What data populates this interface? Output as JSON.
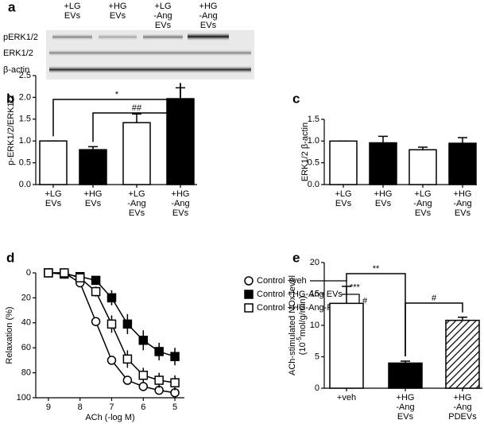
{
  "blot": {
    "label": "a",
    "lanes": [
      [
        "+LG",
        "EVs"
      ],
      [
        "+HG",
        "EVs"
      ],
      [
        "+LG",
        "-Ang",
        "EVs"
      ],
      [
        "+HG",
        "-Ang",
        "EVs"
      ]
    ],
    "rows": [
      "pERK1/2",
      "ERK1/2",
      "β-actin"
    ]
  },
  "chart_data": [
    {
      "type": "bar",
      "panel": "b",
      "ylabel": "p-ERK1/2/ERK1/2",
      "categories": [
        [
          "+LG",
          "EVs"
        ],
        [
          "+HG",
          "EVs"
        ],
        [
          "+LG",
          "-Ang",
          "EVs"
        ],
        [
          "+HG",
          "-Ang",
          "EVs"
        ]
      ],
      "values": [
        1.0,
        0.8,
        1.42,
        1.97
      ],
      "errors": [
        0,
        0.07,
        0.2,
        0.25
      ],
      "colors": [
        "#ffffff",
        "#000000",
        "#ffffff",
        "#000000"
      ],
      "ylim": [
        0,
        2.5
      ],
      "yticks": [
        {
          "value": 0,
          "label": "0.0"
        },
        0.5,
        {
          "value": 1,
          "label": "1.0"
        },
        1.5,
        {
          "value": 2,
          "label": "2.0"
        },
        2.5
      ],
      "annotations": [
        "*",
        "##"
      ]
    },
    {
      "type": "bar",
      "panel": "c",
      "ylabel": "ERK1/2 β-actin",
      "categories": [
        [
          "+LG",
          "EVs"
        ],
        [
          "+HG",
          "EVs"
        ],
        [
          "+LG",
          "-Ang",
          "EVs"
        ],
        [
          "+HG",
          "-Ang",
          "EVs"
        ]
      ],
      "values": [
        1.0,
        0.96,
        0.8,
        0.95
      ],
      "errors": [
        0,
        0.15,
        0.06,
        0.13
      ],
      "colors": [
        "#ffffff",
        "#000000",
        "#ffffff",
        "#000000"
      ],
      "ylim": [
        0,
        1.5
      ],
      "yticks": [
        {
          "value": 0,
          "label": "0.0"
        },
        0.5,
        {
          "value": 1,
          "label": "1.0"
        },
        1.5
      ]
    },
    {
      "type": "line",
      "panel": "d",
      "xlabel": "ACh (-log M)",
      "ylabel": "Relaxation (%)",
      "x": [
        9,
        8.5,
        8,
        7.5,
        7,
        6.5,
        6,
        5.5,
        5
      ],
      "xlim": [
        9.4,
        4.7
      ],
      "xticks": [
        9,
        8,
        7,
        6,
        5
      ],
      "ylim": [
        100,
        0
      ],
      "yticks": [
        0,
        20,
        40,
        60,
        80,
        100
      ],
      "series": [
        {
          "name": "Control +veh",
          "marker": "circle",
          "color": "#ffffff",
          "values": [
            0,
            0,
            8,
            39,
            70,
            86,
            91,
            94,
            96
          ],
          "errors": [
            0,
            0,
            2,
            3,
            3,
            2,
            2,
            2,
            2
          ]
        },
        {
          "name": "Control +HG-Ang EVs",
          "marker": "square",
          "color": "#000000",
          "values": [
            0,
            1,
            3,
            6,
            20,
            41,
            54,
            63,
            67
          ],
          "errors": [
            0,
            1,
            2,
            3,
            6,
            8,
            8,
            7,
            7
          ]
        },
        {
          "name": "Control +HG-Ang-PDEVs",
          "marker": "square",
          "color": "#ffffff",
          "values": [
            0,
            0,
            4,
            15,
            41,
            69,
            82,
            86,
            88
          ],
          "errors": [
            0,
            0,
            2,
            4,
            7,
            7,
            6,
            6,
            6
          ]
        }
      ],
      "annotations": [
        "***",
        "#"
      ]
    },
    {
      "type": "bar",
      "panel": "e",
      "ylabel": [
        "ACh-stimulated NOx level",
        "(10",
        "-5",
        "mol/g/min)"
      ],
      "categories": [
        [
          "+veh"
        ],
        [
          "+HG",
          "-Ang",
          "EVs"
        ],
        [
          "+HG",
          "-Ang",
          "PDEVs"
        ]
      ],
      "values": [
        13.5,
        4.0,
        10.8
      ],
      "errors": [
        2.7,
        0.3,
        0.5
      ],
      "colors": [
        "#ffffff",
        "#000000",
        "#ffffff"
      ],
      "patterns": [
        "solid",
        "solid",
        "hatched"
      ],
      "ylim": [
        0,
        20
      ],
      "yticks": [
        0,
        5,
        10,
        15,
        20
      ],
      "annotations": [
        "**",
        "#"
      ]
    }
  ]
}
